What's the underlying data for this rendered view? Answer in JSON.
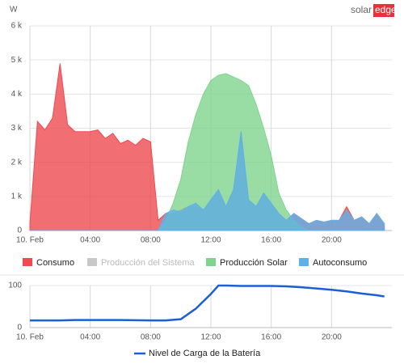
{
  "logo": [
    "solar",
    "edge"
  ],
  "chart_data": [
    {
      "type": "area",
      "ylabel": "W",
      "x": [
        0,
        0.5,
        1,
        1.5,
        2,
        2.5,
        3,
        3.5,
        4,
        4.5,
        5,
        5.5,
        6,
        6.5,
        7,
        7.5,
        8,
        8.5,
        9,
        9.5,
        10,
        10.5,
        11,
        11.5,
        12,
        12.5,
        13,
        13.5,
        14,
        14.5,
        15,
        15.5,
        16,
        16.5,
        17,
        17.5,
        18,
        18.5,
        19,
        19.5,
        20,
        20.5,
        21,
        21.5,
        22,
        22.5,
        23,
        23.5
      ],
      "xlim": [
        0,
        24
      ],
      "xticks": [
        {
          "value": 0,
          "label": "10. Feb"
        },
        {
          "value": 4,
          "label": "04:00"
        },
        {
          "value": 8,
          "label": "08:00"
        },
        {
          "value": 12,
          "label": "12:00"
        },
        {
          "value": 16,
          "label": "16:00"
        },
        {
          "value": 20,
          "label": "20:00"
        }
      ],
      "ylim": [
        0,
        6000
      ],
      "yticks": [
        0,
        {
          "value": 1000,
          "label": "1 k"
        },
        {
          "value": 2000,
          "label": "2 k"
        },
        {
          "value": 3000,
          "label": "3 k"
        },
        {
          "value": 4000,
          "label": "4 k"
        },
        {
          "value": 5000,
          "label": "5 k"
        },
        {
          "value": 6000,
          "label": "6 k"
        }
      ],
      "grid": true,
      "series": [
        {
          "name": "Consumo",
          "color": "#ee4a50",
          "values": [
            200,
            3200,
            2950,
            3300,
            4900,
            3100,
            2900,
            2900,
            2900,
            2950,
            2700,
            2850,
            2550,
            2650,
            2500,
            2700,
            2600,
            300,
            500,
            500,
            600,
            700,
            700,
            600,
            900,
            1200,
            700,
            1200,
            2900,
            900,
            700,
            1100,
            800,
            500,
            300,
            500,
            350,
            200,
            300,
            250,
            300,
            300,
            700,
            300,
            400,
            200,
            500,
            200
          ]
        },
        {
          "name": "Producción del Sistema",
          "color": "#c8c8c8",
          "visible": false
        },
        {
          "name": "Producción Solar",
          "color": "#7fd48e",
          "values": [
            0,
            0,
            0,
            0,
            0,
            0,
            0,
            0,
            0,
            0,
            0,
            0,
            0,
            0,
            0,
            0,
            0,
            0,
            300,
            800,
            1500,
            2600,
            3400,
            4000,
            4400,
            4550,
            4600,
            4500,
            4400,
            4250,
            3700,
            3000,
            2200,
            1100,
            600,
            300,
            100,
            0,
            0,
            0,
            0,
            0,
            0,
            0,
            0,
            0,
            0,
            0
          ]
        },
        {
          "name": "Autoconsumo",
          "color": "#5eb2ea",
          "values": [
            0,
            0,
            0,
            0,
            0,
            0,
            0,
            0,
            0,
            0,
            0,
            0,
            0,
            0,
            0,
            0,
            0,
            0,
            500,
            600,
            550,
            700,
            800,
            600,
            900,
            1200,
            700,
            1200,
            2900,
            900,
            700,
            1100,
            800,
            500,
            300,
            500,
            350,
            200,
            300,
            250,
            300,
            300,
            600,
            300,
            400,
            200,
            500,
            200
          ]
        }
      ]
    },
    {
      "type": "line",
      "x": [
        0,
        1,
        2,
        3,
        4,
        5,
        6,
        7,
        8,
        9,
        10,
        11,
        12,
        12.5,
        13,
        14,
        15,
        16,
        17,
        18,
        19,
        20,
        21,
        22,
        23,
        23.5
      ],
      "xlim": [
        0,
        24
      ],
      "xticks": [
        {
          "value": 0,
          "label": "10. Feb"
        },
        {
          "value": 4,
          "label": "04:00"
        },
        {
          "value": 8,
          "label": "08:00"
        },
        {
          "value": 12,
          "label": "12:00"
        },
        {
          "value": 16,
          "label": "16:00"
        },
        {
          "value": 20,
          "label": "20:00"
        }
      ],
      "ylim": [
        0,
        100
      ],
      "yticks": [
        0,
        100
      ],
      "grid": true,
      "series": [
        {
          "name": "Nivel de Carga de la Batería",
          "color": "#1a5fd6",
          "values": [
            17,
            17,
            17,
            18,
            18,
            18,
            18,
            17.5,
            17,
            17,
            20,
            45,
            80,
            100,
            100,
            99,
            99,
            99,
            98,
            96,
            93,
            90,
            86,
            81,
            77,
            74
          ]
        }
      ]
    }
  ]
}
